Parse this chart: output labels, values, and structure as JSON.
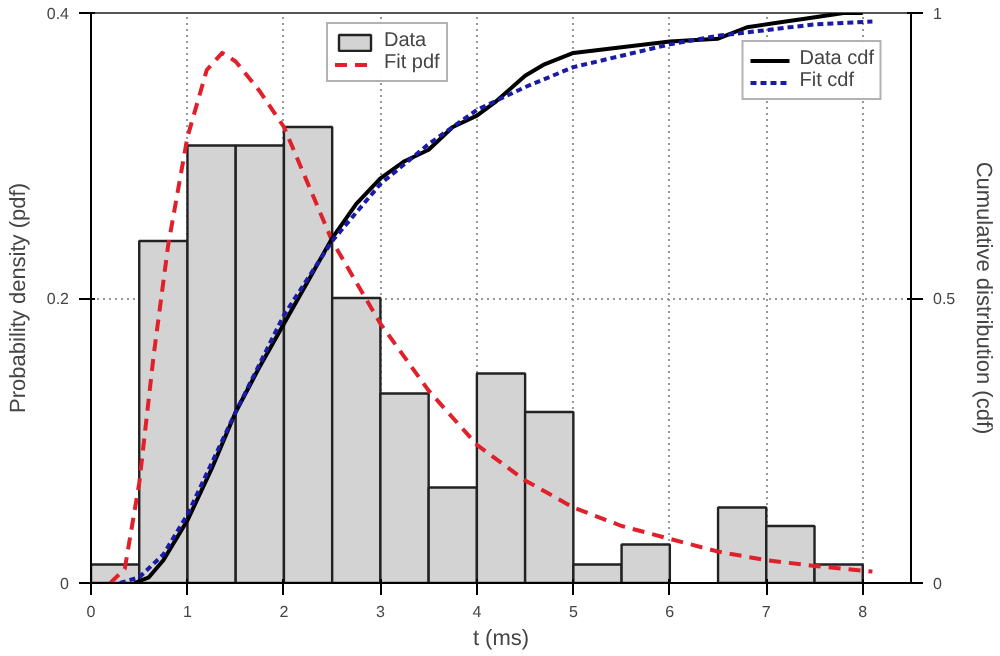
{
  "chart_data": {
    "type": "histogram",
    "xlabel": "t (ms)",
    "ylabel": "Probability density (pdf)",
    "y2label": "Cumulative distribution (cdf)",
    "xlim": [
      0,
      8.5
    ],
    "xticks": [
      0,
      1,
      2,
      3,
      4,
      5,
      6,
      7,
      8
    ],
    "ylim": [
      0,
      0.4
    ],
    "yticks": [
      0,
      0.2,
      0.4
    ],
    "y2lim": [
      0,
      1
    ],
    "y2ticks": [
      0,
      0.5,
      1
    ],
    "grid": true,
    "legend": "top right",
    "series": [
      {
        "name": "Data",
        "color": "#d3d3d3",
        "bins": [
          0,
          0.5,
          1,
          1.5,
          2,
          2.5,
          3,
          3.5,
          4,
          4.5,
          5,
          5.5,
          6,
          6.5,
          7,
          7.5,
          8
        ],
        "values": [
          0.013,
          0.24,
          0.307,
          0.307,
          0.32,
          0.2,
          0.133,
          0.067,
          0.147,
          0.12,
          0.013,
          0.027,
          null,
          0.053,
          0.04,
          0.013
        ]
      },
      {
        "type": "line",
        "name": "Fit pdf",
        "color": "#e0202a",
        "line_style": "dashed",
        "x": [
          0.2,
          0.35,
          0.5,
          0.65,
          0.8,
          1.0,
          1.2,
          1.36,
          1.5,
          1.75,
          2.0,
          2.5,
          3.0,
          3.5,
          4.0,
          4.5,
          5.0,
          5.5,
          6.0,
          6.5,
          7.0,
          7.5,
          8.1
        ],
        "values": [
          0,
          0.01,
          0.07,
          0.16,
          0.237,
          0.313,
          0.36,
          0.372,
          0.366,
          0.345,
          0.32,
          0.24,
          0.182,
          0.135,
          0.097,
          0.072,
          0.053,
          0.04,
          0.031,
          0.022,
          0.016,
          0.012,
          0.008
        ]
      },
      {
        "type": "line",
        "name": "Data cdf",
        "color": "#000000",
        "line_style": "solid",
        "axis": "y2",
        "x": [
          0.45,
          0.6,
          0.75,
          1.0,
          1.25,
          1.5,
          1.75,
          2.0,
          2.25,
          2.5,
          2.75,
          3.0,
          3.25,
          3.5,
          3.75,
          4.0,
          4.2,
          4.5,
          4.7,
          5.0,
          5.5,
          6.0,
          6.5,
          6.8,
          7.2,
          7.4,
          7.8,
          8.0
        ],
        "values": [
          0,
          0.01,
          0.04,
          0.11,
          0.2,
          0.3,
          0.38,
          0.455,
          0.53,
          0.605,
          0.665,
          0.71,
          0.74,
          0.76,
          0.8,
          0.82,
          0.845,
          0.89,
          0.91,
          0.93,
          0.94,
          0.95,
          0.955,
          0.975,
          0.985,
          0.99,
          1.0,
          1.0
        ]
      },
      {
        "type": "line",
        "name": "Fit cdf",
        "color": "#1a1aa8",
        "line_style": "dotted",
        "axis": "y2",
        "x": [
          0.3,
          0.5,
          0.75,
          1.0,
          1.5,
          2.0,
          2.5,
          3.0,
          3.5,
          4.0,
          4.5,
          5.0,
          5.5,
          6.0,
          6.5,
          7.0,
          7.5,
          8.1
        ],
        "values": [
          0,
          0.01,
          0.05,
          0.12,
          0.3,
          0.47,
          0.6,
          0.7,
          0.77,
          0.83,
          0.87,
          0.905,
          0.925,
          0.945,
          0.96,
          0.97,
          0.98,
          0.985
        ]
      }
    ]
  }
}
